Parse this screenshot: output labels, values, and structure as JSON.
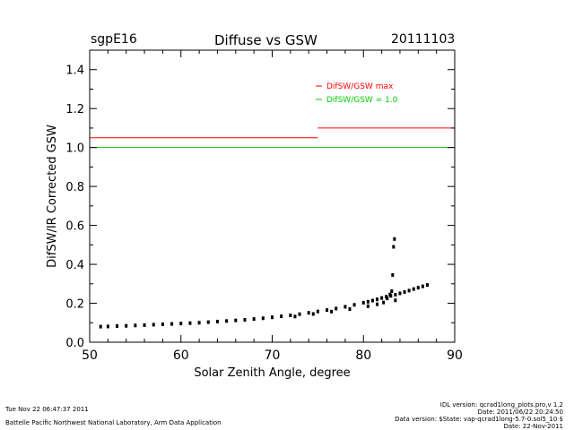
{
  "header": {
    "site": "sgpE16",
    "title": "Diffuse vs GSW",
    "date": "20111103"
  },
  "footer": {
    "timestamp": "Tue Nov 22 06:47:37 2011",
    "lab": "Battelle Pacific Northwest National Laboratory, Arm Data Application",
    "idl_version": "IDL version: qcrad1long_plots.pro,v 1.2",
    "idl_date": "Date: 2011/06/22 20:24:50",
    "data_version": "Data version: $State: vap-qcrad1long-5.7-0.sol5_10 $",
    "data_date": "Date: 22-Nov-2011"
  },
  "colors": {
    "max_line": "#ff0000",
    "unity_line": "#00cc00",
    "points": "#000000",
    "axes": "#000000"
  },
  "chart_data": {
    "type": "scatter",
    "title": "Diffuse vs GSW",
    "xlabel": "Solar Zenith Angle, degree",
    "ylabel": "DifSW/IR Corrected GSW",
    "xlim": [
      50,
      90
    ],
    "ylim": [
      0.0,
      1.5
    ],
    "x_ticks": [
      50,
      60,
      70,
      80,
      90
    ],
    "x_tick_labels": [
      "50",
      "60",
      "70",
      "80",
      "90"
    ],
    "y_ticks": [
      0.0,
      0.2,
      0.4,
      0.6,
      0.8,
      1.0,
      1.2,
      1.4
    ],
    "y_tick_labels": [
      "0.0",
      "0.2",
      "0.4",
      "0.6",
      "0.8",
      "1.0",
      "1.2",
      "1.4"
    ],
    "grid": false,
    "legend": [
      {
        "label": "DifSW/GSW max",
        "color": "#ff0000"
      },
      {
        "label": "DifSW/GSW = 1.0",
        "color": "#00cc00"
      }
    ],
    "reference_lines": [
      {
        "name": "DifSW/GSW max",
        "segments": [
          {
            "x": [
              50,
              75
            ],
            "y": 1.05
          },
          {
            "x": [
              75,
              90
            ],
            "y": 1.1
          }
        ]
      },
      {
        "name": "DifSW/GSW = 1.0",
        "segments": [
          {
            "x": [
              50,
              90
            ],
            "y": 1.0
          }
        ]
      }
    ],
    "series": [
      {
        "name": "DifSW/IR Corrected GSW",
        "x": [
          51.2,
          52.0,
          53.0,
          54.0,
          55.0,
          56.0,
          57.0,
          58.0,
          59.0,
          60.0,
          61.0,
          62.0,
          63.0,
          64.0,
          65.0,
          66.0,
          67.0,
          68.0,
          69.0,
          70.0,
          71.0,
          72.0,
          73.0,
          74.0,
          75.0,
          76.0,
          77.0,
          78.0,
          79.0,
          80.0,
          80.5,
          81.0,
          81.5,
          82.0,
          82.5,
          83.0,
          83.5,
          84.0,
          84.5,
          85.0,
          85.5,
          86.0,
          86.5,
          87.0,
          72.5,
          74.5,
          76.5,
          78.5,
          80.5,
          81.5,
          82.2,
          82.6,
          82.9,
          83.1,
          83.2,
          83.3,
          83.4,
          83.5
        ],
        "y": [
          0.08,
          0.081,
          0.083,
          0.084,
          0.086,
          0.088,
          0.09,
          0.092,
          0.094,
          0.096,
          0.098,
          0.1,
          0.103,
          0.106,
          0.109,
          0.112,
          0.115,
          0.119,
          0.123,
          0.128,
          0.133,
          0.138,
          0.144,
          0.151,
          0.158,
          0.165,
          0.173,
          0.182,
          0.192,
          0.203,
          0.208,
          0.214,
          0.22,
          0.227,
          0.234,
          0.238,
          0.244,
          0.251,
          0.258,
          0.265,
          0.273,
          0.28,
          0.287,
          0.294,
          0.132,
          0.145,
          0.157,
          0.17,
          0.185,
          0.195,
          0.204,
          0.225,
          0.245,
          0.262,
          0.345,
          0.49,
          0.53,
          0.215
        ]
      }
    ]
  }
}
